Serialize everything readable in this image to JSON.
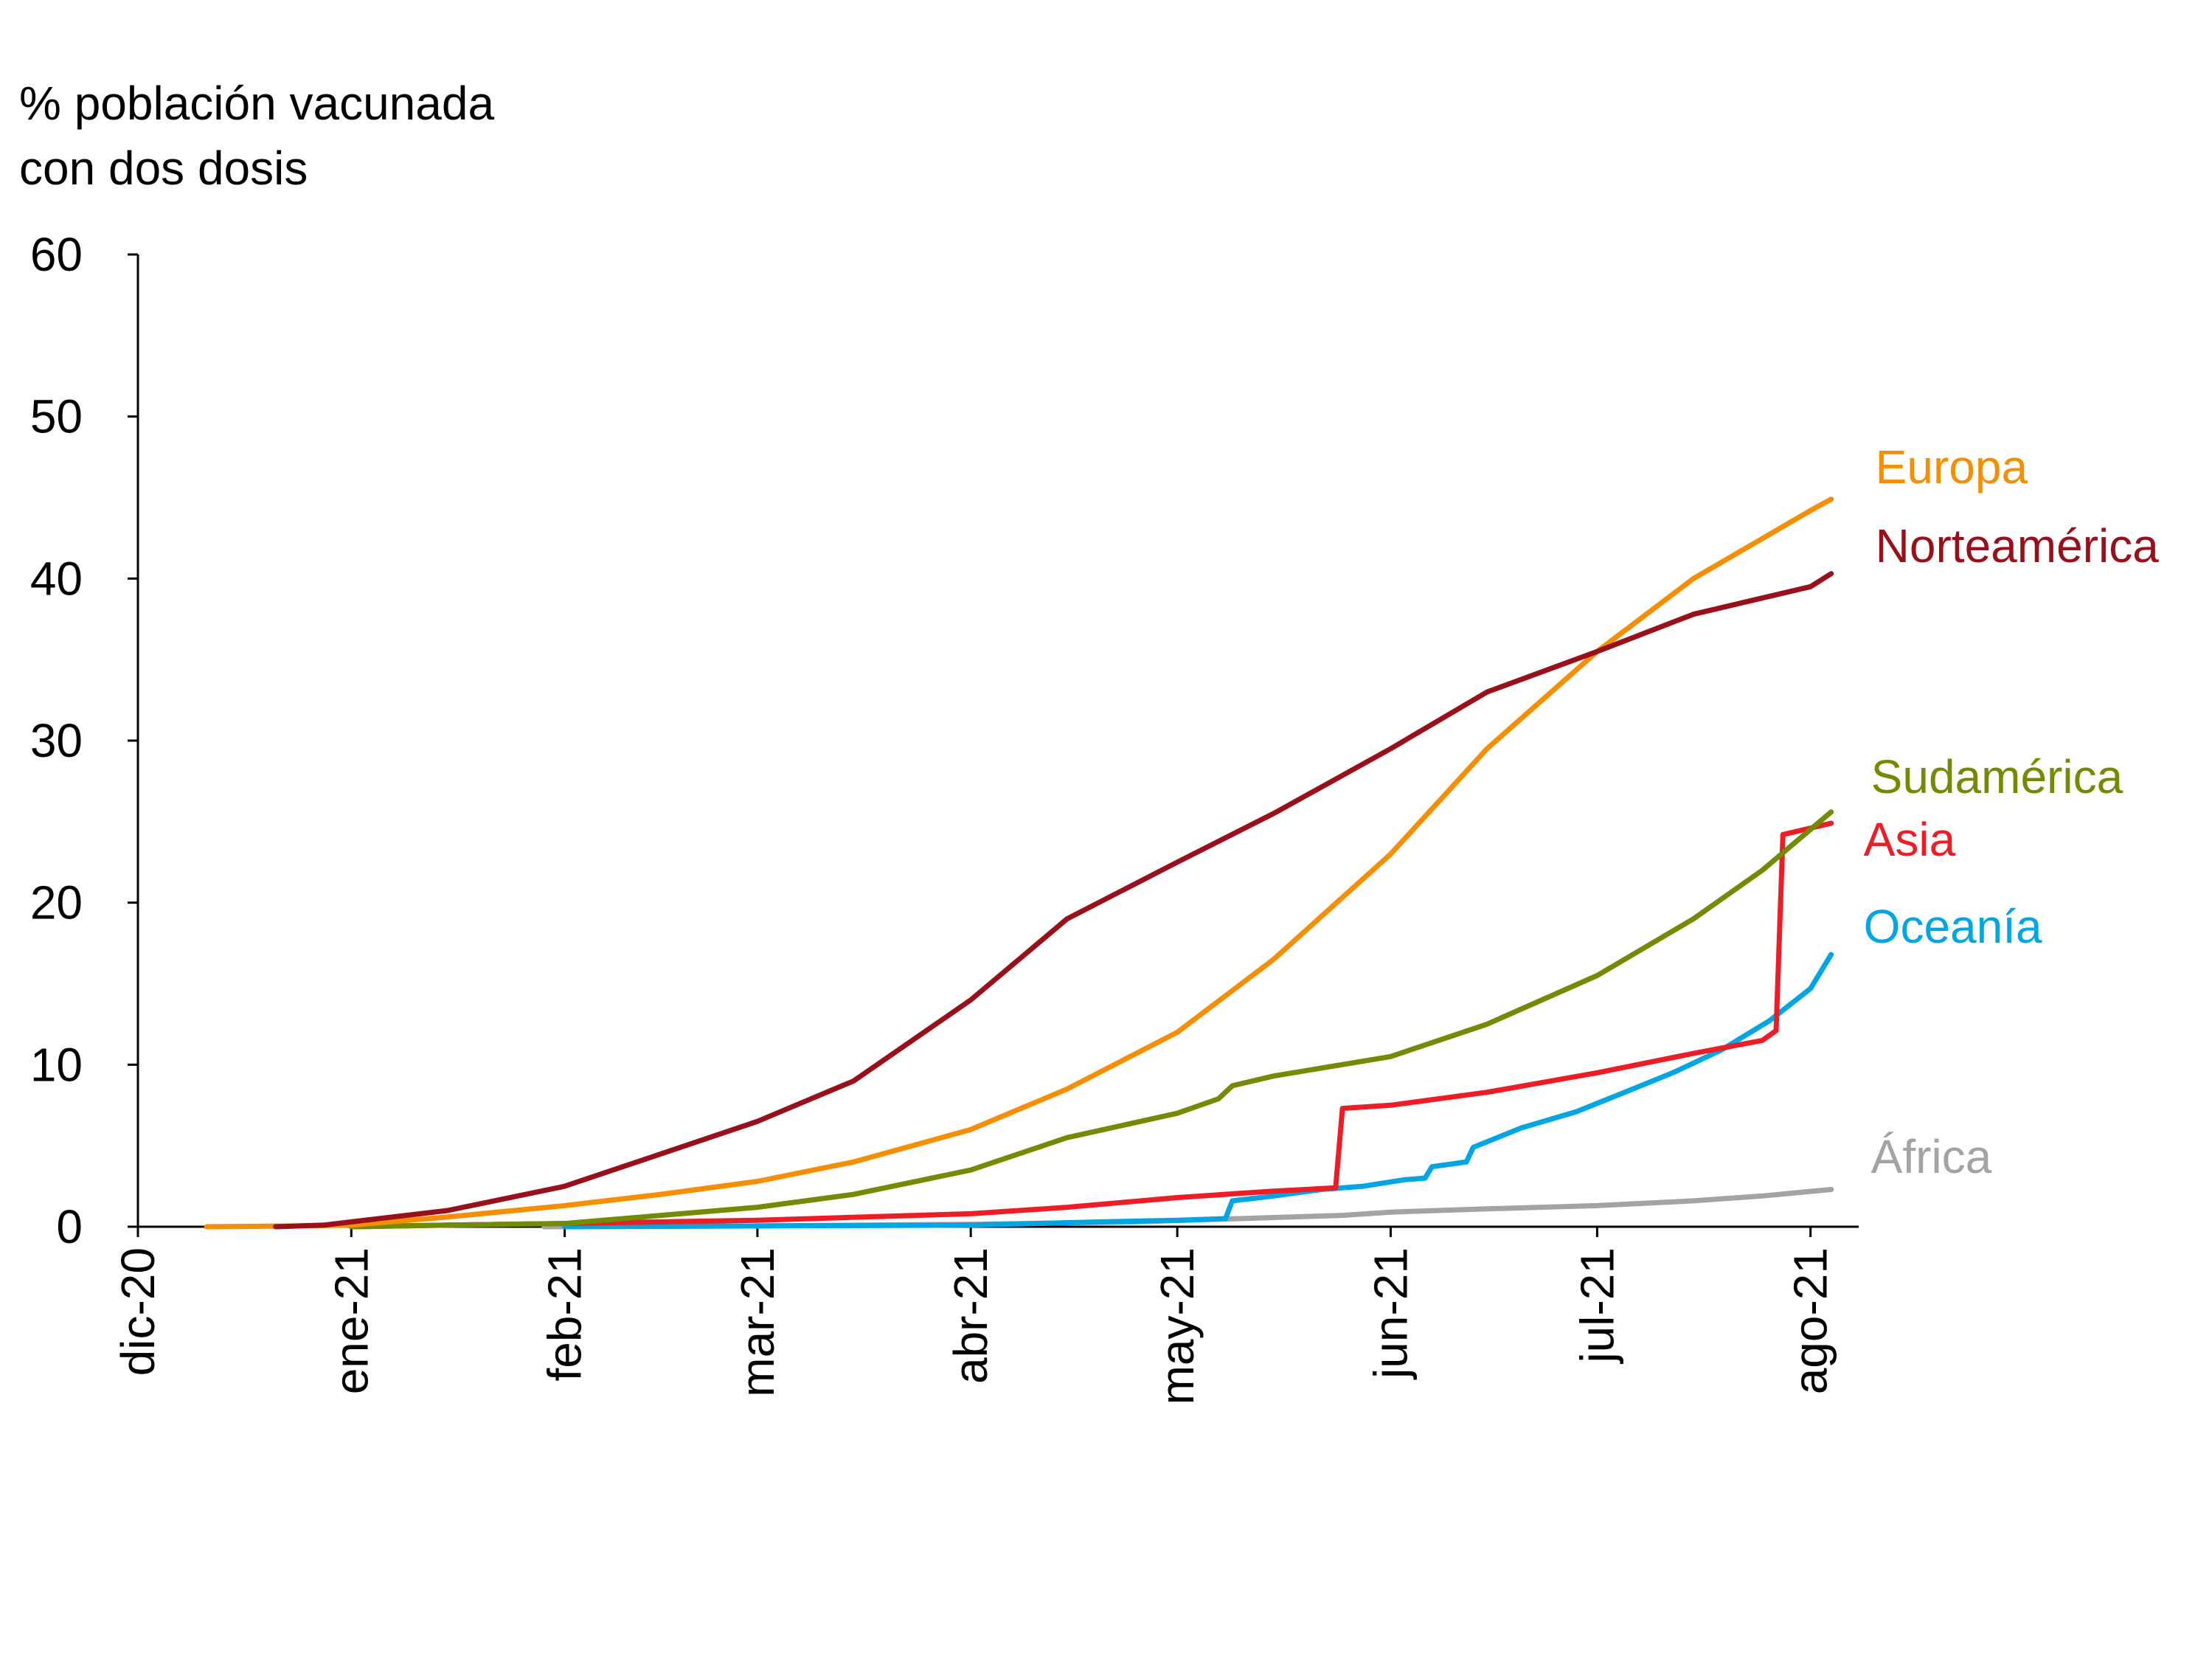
{
  "chart_data": {
    "type": "line",
    "ylabel_lines": [
      "% población vacunada",
      "con dos dosis"
    ],
    "ylim": [
      0,
      60
    ],
    "yticks": [
      0,
      10,
      20,
      30,
      40,
      50,
      60
    ],
    "x_date_range": [
      "2020-12-01",
      "2021-08-08"
    ],
    "xticks": [
      {
        "date": "2020-12-01",
        "label": "dic-20"
      },
      {
        "date": "2021-01-01",
        "label": "ene-21"
      },
      {
        "date": "2021-02-01",
        "label": "feb-21"
      },
      {
        "date": "2021-03-01",
        "label": "mar-21"
      },
      {
        "date": "2021-04-01",
        "label": "abr-21"
      },
      {
        "date": "2021-05-01",
        "label": "may-21"
      },
      {
        "date": "2021-06-01",
        "label": "jun-21"
      },
      {
        "date": "2021-07-01",
        "label": "jul-21"
      },
      {
        "date": "2021-08-01",
        "label": "ago-21"
      }
    ],
    "grid": false,
    "legend": "direct labels at line ends (right)",
    "series": [
      {
        "name": "Africa",
        "label": "África",
        "color": "#a3a3a3",
        "points": [
          [
            "2021-01-29",
            0
          ],
          [
            "2021-03-01",
            0.05
          ],
          [
            "2021-04-01",
            0.15
          ],
          [
            "2021-04-25",
            0.3
          ],
          [
            "2021-05-10",
            0.5
          ],
          [
            "2021-05-25",
            0.7
          ],
          [
            "2021-06-01",
            0.9
          ],
          [
            "2021-06-15",
            1.1
          ],
          [
            "2021-07-01",
            1.3
          ],
          [
            "2021-07-15",
            1.6
          ],
          [
            "2021-07-25",
            1.9
          ],
          [
            "2021-08-04",
            2.3
          ]
        ]
      },
      {
        "name": "Oceania",
        "label": "Oceanía",
        "color": "#00a6e3",
        "points": [
          [
            "2021-02-01",
            0
          ],
          [
            "2021-03-01",
            0.05
          ],
          [
            "2021-04-01",
            0.1
          ],
          [
            "2021-04-20",
            0.3
          ],
          [
            "2021-05-01",
            0.4
          ],
          [
            "2021-05-08",
            0.5
          ],
          [
            "2021-05-09",
            1.6
          ],
          [
            "2021-05-15",
            1.9
          ],
          [
            "2021-05-22",
            2.3
          ],
          [
            "2021-05-28",
            2.5
          ],
          [
            "2021-06-03",
            2.9
          ],
          [
            "2021-06-06",
            3.0
          ],
          [
            "2021-06-07",
            3.7
          ],
          [
            "2021-06-12",
            4.0
          ],
          [
            "2021-06-13",
            4.9
          ],
          [
            "2021-06-20",
            6.1
          ],
          [
            "2021-06-28",
            7.1
          ],
          [
            "2021-07-05",
            8.3
          ],
          [
            "2021-07-12",
            9.5
          ],
          [
            "2021-07-19",
            10.9
          ],
          [
            "2021-07-26",
            12.7
          ],
          [
            "2021-08-01",
            14.7
          ],
          [
            "2021-08-04",
            16.8
          ]
        ]
      },
      {
        "name": "Asia",
        "label": "Asia",
        "color": "#ee1c25",
        "points": [
          [
            "2021-01-01",
            0
          ],
          [
            "2021-01-15",
            0.1
          ],
          [
            "2021-02-01",
            0.2
          ],
          [
            "2021-03-01",
            0.4
          ],
          [
            "2021-04-01",
            0.8
          ],
          [
            "2021-04-15",
            1.2
          ],
          [
            "2021-05-01",
            1.8
          ],
          [
            "2021-05-15",
            2.2
          ],
          [
            "2021-05-24",
            2.4
          ],
          [
            "2021-05-25",
            7.3
          ],
          [
            "2021-06-01",
            7.5
          ],
          [
            "2021-06-15",
            8.3
          ],
          [
            "2021-07-01",
            9.5
          ],
          [
            "2021-07-15",
            10.7
          ],
          [
            "2021-07-25",
            11.5
          ],
          [
            "2021-07-27",
            12.1
          ],
          [
            "2021-07-28",
            24.2
          ],
          [
            "2021-08-04",
            24.9
          ]
        ]
      },
      {
        "name": "South America",
        "label": "Sudamérica",
        "color": "#718c00",
        "points": [
          [
            "2021-01-01",
            0
          ],
          [
            "2021-01-15",
            0.1
          ],
          [
            "2021-02-01",
            0.2
          ],
          [
            "2021-02-15",
            0.7
          ],
          [
            "2021-03-01",
            1.2
          ],
          [
            "2021-03-15",
            2.0
          ],
          [
            "2021-04-01",
            3.5
          ],
          [
            "2021-04-15",
            5.5
          ],
          [
            "2021-05-01",
            7.0
          ],
          [
            "2021-05-07",
            7.9
          ],
          [
            "2021-05-09",
            8.7
          ],
          [
            "2021-05-15",
            9.3
          ],
          [
            "2021-06-01",
            10.5
          ],
          [
            "2021-06-15",
            12.5
          ],
          [
            "2021-07-01",
            15.5
          ],
          [
            "2021-07-15",
            19.0
          ],
          [
            "2021-07-25",
            22.0
          ],
          [
            "2021-08-04",
            25.6
          ]
        ]
      },
      {
        "name": "Europe",
        "label": "Europa",
        "color": "#f78e00",
        "points": [
          [
            "2020-12-11",
            0
          ],
          [
            "2020-12-25",
            0.05
          ],
          [
            "2021-01-01",
            0.1
          ],
          [
            "2021-01-15",
            0.6
          ],
          [
            "2021-02-01",
            1.3
          ],
          [
            "2021-02-15",
            2.0
          ],
          [
            "2021-03-01",
            2.8
          ],
          [
            "2021-03-15",
            4.0
          ],
          [
            "2021-04-01",
            6.0
          ],
          [
            "2021-04-15",
            8.5
          ],
          [
            "2021-05-01",
            12.0
          ],
          [
            "2021-05-15",
            16.5
          ],
          [
            "2021-06-01",
            23.0
          ],
          [
            "2021-06-15",
            29.5
          ],
          [
            "2021-07-01",
            35.5
          ],
          [
            "2021-07-15",
            40.0
          ],
          [
            "2021-08-01",
            44.2
          ],
          [
            "2021-08-04",
            44.9
          ]
        ]
      },
      {
        "name": "North America",
        "label": "Norteamérica",
        "color": "#990f1a",
        "points": [
          [
            "2020-12-21",
            0
          ],
          [
            "2020-12-28",
            0.1
          ],
          [
            "2021-01-01",
            0.3
          ],
          [
            "2021-01-15",
            1.0
          ],
          [
            "2021-02-01",
            2.5
          ],
          [
            "2021-02-15",
            4.5
          ],
          [
            "2021-03-01",
            6.5
          ],
          [
            "2021-03-15",
            9.0
          ],
          [
            "2021-04-01",
            14.0
          ],
          [
            "2021-04-15",
            19.0
          ],
          [
            "2021-05-01",
            22.5
          ],
          [
            "2021-05-15",
            25.5
          ],
          [
            "2021-06-01",
            29.5
          ],
          [
            "2021-06-15",
            33.0
          ],
          [
            "2021-07-01",
            35.5
          ],
          [
            "2021-07-15",
            37.8
          ],
          [
            "2021-08-01",
            39.5
          ],
          [
            "2021-08-04",
            40.3
          ]
        ]
      }
    ]
  }
}
